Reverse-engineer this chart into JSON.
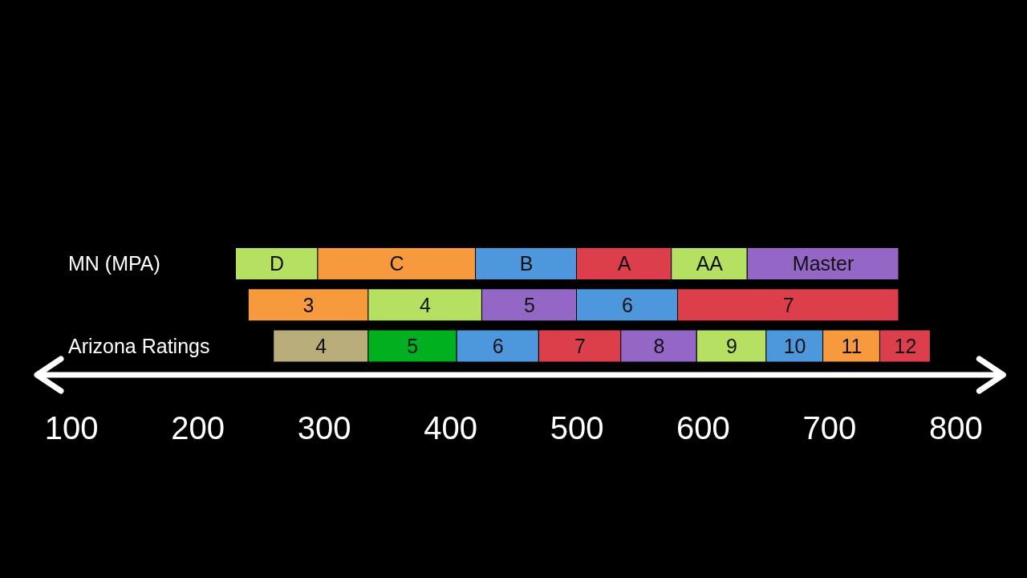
{
  "chart_data": {
    "type": "bar",
    "orientation": "horizontal",
    "categories": [
      "MN (MPA)",
      null,
      "Arizona Ratings"
    ],
    "series": [
      {
        "base": [
          230,
          240,
          260
        ],
        "values": [
          65,
          95,
          75
        ],
        "colors": [
          "#b5e061",
          "#f79a3e",
          "#b8ad78"
        ]
      },
      {
        "base": [
          295,
          335,
          335
        ],
        "values": [
          125,
          90,
          70
        ],
        "colors": [
          "#f79a3e",
          "#b5e061",
          "#00b020"
        ]
      },
      {
        "base": [
          420,
          425,
          405
        ],
        "values": [
          80,
          75,
          65
        ],
        "colors": [
          "#4e97dd",
          "#9467c7",
          "#4e97dd"
        ]
      },
      {
        "base": [
          500,
          500,
          470
        ],
        "values": [
          75,
          80,
          65
        ],
        "colors": [
          "#dd3e4c",
          "#4e97dd",
          "#dd3e4c"
        ]
      },
      {
        "base": [
          575,
          580,
          535
        ],
        "values": [
          60,
          175,
          60
        ],
        "colors": [
          "#b5e061",
          "#dd3e4c",
          "#9467c7"
        ]
      },
      {
        "base": [
          635,
          null,
          595
        ],
        "values": [
          120,
          null,
          55
        ],
        "colors": [
          "#9467c7",
          null,
          "#b5e061"
        ]
      },
      {
        "base": [
          null,
          null,
          650
        ],
        "values": [
          null,
          null,
          45
        ],
        "colors": [
          null,
          null,
          "#4e97dd"
        ]
      },
      {
        "base": [
          null,
          null,
          695
        ],
        "values": [
          null,
          null,
          45
        ],
        "colors": [
          null,
          null,
          "#f79a3e"
        ]
      },
      {
        "base": [
          null,
          null,
          740
        ],
        "values": [
          null,
          null,
          40
        ],
        "colors": [
          null,
          null,
          "#dd3e4c"
        ]
      }
    ],
    "annotations": [
      {
        "text": "D",
        "x": 262.5,
        "y": "MN (MPA)"
      },
      {
        "text": "C",
        "x": 357.5,
        "y": "MN (MPA)"
      },
      {
        "text": "B",
        "x": 460,
        "y": "MN (MPA)"
      },
      {
        "text": "A",
        "x": 537.5,
        "y": "MN (MPA)"
      },
      {
        "text": "AA",
        "x": 605,
        "y": "MN (MPA)"
      },
      {
        "text": "Master",
        "x": 695,
        "y": "MN (MPA)"
      },
      "3",
      "4",
      "5",
      "6",
      "7",
      {
        "text": "4",
        "x": 297.5,
        "y": "Arizona Ratings"
      },
      {
        "text": "5",
        "x": 370,
        "y": "Arizona Ratings"
      },
      {
        "text": "6",
        "x": 437.5,
        "y": "Arizona Ratings"
      },
      {
        "text": "7",
        "x": 502.5,
        "y": "Arizona Ratings"
      },
      {
        "text": "8",
        "x": 565,
        "y": "Arizona Ratings"
      },
      {
        "text": "9",
        "x": 622.5,
        "y": "Arizona Ratings"
      },
      {
        "text": "10",
        "x": 672.5,
        "y": "Arizona Ratings"
      },
      {
        "text": "11",
        "x": 717.5,
        "y": "Arizona Ratings"
      },
      {
        "text": "12",
        "x": 760,
        "y": "Arizona Ratings"
      }
    ],
    "xlim": [
      70,
      840
    ],
    "xticks": [
      100,
      200,
      300,
      400,
      500,
      600,
      700,
      800
    ],
    "grid": false,
    "legend": false
  }
}
